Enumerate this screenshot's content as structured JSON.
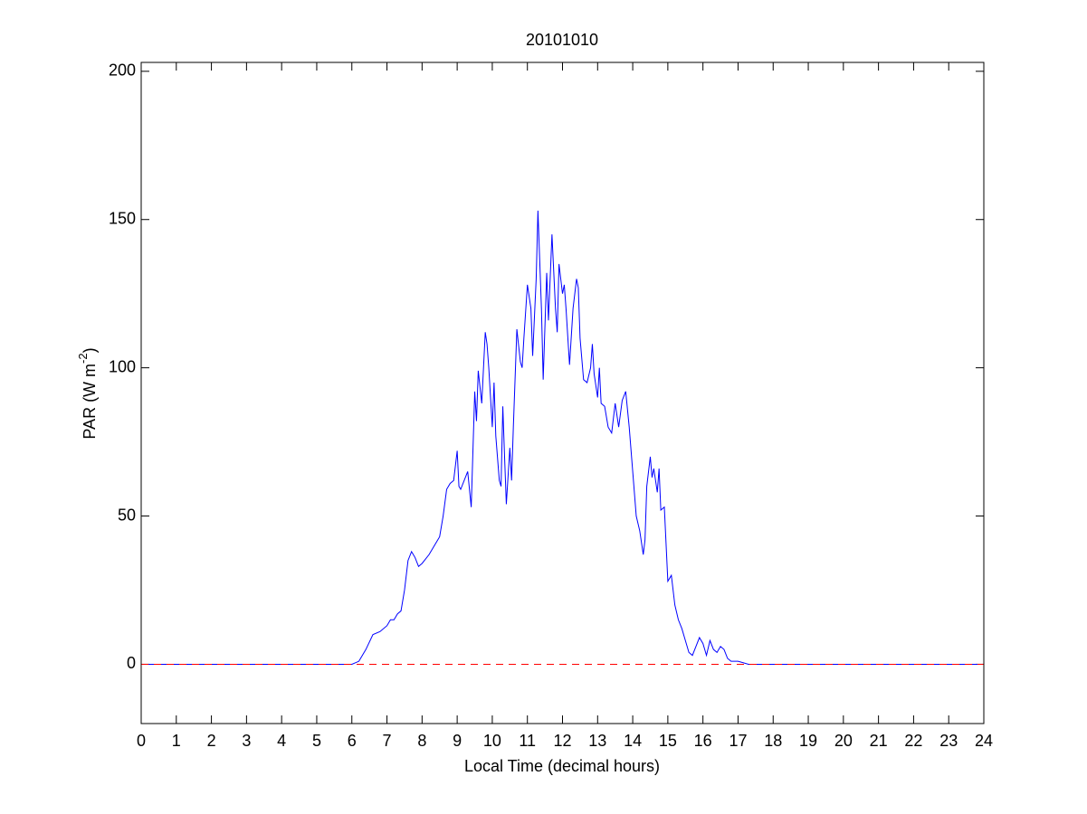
{
  "chart_data": {
    "type": "line",
    "title": "20101010",
    "xlabel": "Local Time (decimal hours)",
    "ylabel": [
      "PAR (W m",
      "-2",
      ")"
    ],
    "xlim": [
      0,
      24
    ],
    "ylim": [
      -20,
      203
    ],
    "xticks": [
      0,
      1,
      2,
      3,
      4,
      5,
      6,
      7,
      8,
      9,
      10,
      11,
      12,
      13,
      14,
      15,
      16,
      17,
      18,
      19,
      20,
      21,
      22,
      23,
      24
    ],
    "yticks": [
      0,
      50,
      100,
      150,
      200
    ],
    "series": [
      {
        "color": "#0000ff",
        "style": "solid",
        "x": [
          0,
          6.0,
          6.2,
          6.4,
          6.6,
          6.8,
          7.0,
          7.1,
          7.2,
          7.3,
          7.4,
          7.5,
          7.6,
          7.7,
          7.8,
          7.9,
          8.0,
          8.2,
          8.4,
          8.5,
          8.6,
          8.7,
          8.8,
          8.9,
          9.0,
          9.05,
          9.1,
          9.2,
          9.3,
          9.4,
          9.5,
          9.55,
          9.6,
          9.7,
          9.8,
          9.85,
          9.9,
          10.0,
          10.05,
          10.1,
          10.2,
          10.25,
          10.3,
          10.35,
          10.4,
          10.5,
          10.55,
          10.6,
          10.7,
          10.8,
          10.85,
          10.9,
          11.0,
          11.1,
          11.15,
          11.25,
          11.3,
          11.4,
          11.45,
          11.55,
          11.6,
          11.7,
          11.8,
          11.85,
          11.9,
          12.0,
          12.05,
          12.1,
          12.2,
          12.3,
          12.4,
          12.45,
          12.5,
          12.6,
          12.7,
          12.8,
          12.85,
          12.9,
          13.0,
          13.05,
          13.1,
          13.2,
          13.3,
          13.4,
          13.5,
          13.6,
          13.7,
          13.8,
          13.9,
          14.0,
          14.1,
          14.2,
          14.3,
          14.35,
          14.4,
          14.5,
          14.55,
          14.6,
          14.7,
          14.75,
          14.8,
          14.9,
          15.0,
          15.1,
          15.2,
          15.3,
          15.4,
          15.5,
          15.6,
          15.7,
          15.8,
          15.9,
          16.0,
          16.1,
          16.2,
          16.3,
          16.4,
          16.5,
          16.6,
          16.7,
          16.8,
          17.0,
          17.3,
          24
        ],
        "values": [
          0,
          0,
          1,
          5,
          10,
          11,
          13,
          15,
          15,
          17,
          18,
          25,
          35,
          38,
          36,
          33,
          34,
          37,
          41,
          43,
          50,
          59,
          61,
          62,
          72,
          60,
          59,
          62,
          65,
          53,
          92,
          82,
          99,
          88,
          112,
          108,
          100,
          80,
          95,
          77,
          62,
          60,
          87,
          70,
          54,
          73,
          62,
          80,
          113,
          102,
          100,
          110,
          128,
          120,
          104,
          130,
          153,
          120,
          96,
          132,
          116,
          145,
          120,
          112,
          135,
          125,
          128,
          120,
          101,
          120,
          130,
          127,
          110,
          96,
          95,
          100,
          108,
          98,
          90,
          100,
          88,
          87,
          80,
          78,
          88,
          80,
          89,
          92,
          80,
          65,
          50,
          45,
          37,
          42,
          60,
          70,
          63,
          66,
          58,
          66,
          52,
          53,
          28,
          30,
          20,
          15,
          12,
          8,
          4,
          3,
          6,
          9,
          7,
          3,
          8,
          5,
          4,
          6,
          5,
          2,
          1,
          1,
          0,
          0
        ]
      },
      {
        "color": "#ff0000",
        "style": "dashed",
        "x": [
          0,
          24
        ],
        "values": [
          0,
          0
        ]
      }
    ]
  }
}
